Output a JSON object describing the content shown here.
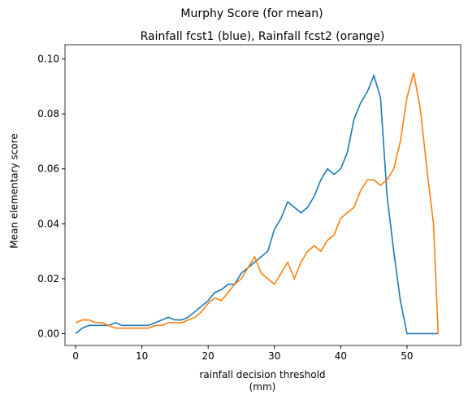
{
  "chart_data": {
    "type": "line",
    "suptitle": "Murphy Score (for mean)",
    "title": "Rainfall fcst1 (blue), Rainfall fcst2 (orange)",
    "x_label": "rainfall decision threshold\n(mm)",
    "y_label": "Mean elementary score",
    "x": [
      0,
      1,
      2,
      3,
      4,
      5,
      6,
      7,
      8,
      9,
      10,
      11,
      12,
      13,
      14,
      15,
      16,
      17,
      18,
      19,
      20,
      21,
      22,
      23,
      24,
      25,
      26,
      27,
      28,
      29,
      30,
      31,
      32,
      33,
      34,
      35,
      36,
      37,
      38,
      39,
      40,
      41,
      42,
      43,
      44,
      45,
      46,
      47,
      48,
      49,
      50,
      51,
      52,
      53,
      54,
      54.7
    ],
    "series": [
      {
        "color": "#1f77b4",
        "values": [
          0.0,
          0.002,
          0.003,
          0.003,
          0.003,
          0.003,
          0.004,
          0.003,
          0.003,
          0.003,
          0.003,
          0.003,
          0.004,
          0.005,
          0.006,
          0.005,
          0.005,
          0.006,
          0.008,
          0.01,
          0.012,
          0.015,
          0.016,
          0.018,
          0.018,
          0.022,
          0.024,
          0.026,
          0.028,
          0.03,
          0.038,
          0.042,
          0.048,
          0.046,
          0.044,
          0.046,
          0.05,
          0.056,
          0.06,
          0.058,
          0.06,
          0.066,
          0.078,
          0.084,
          0.088,
          0.094,
          0.086,
          0.05,
          0.03,
          0.012,
          0.0,
          0.0,
          0.0,
          0.0,
          0.0,
          0.0
        ]
      },
      {
        "color": "#ff7f0e",
        "values": [
          0.004,
          0.005,
          0.005,
          0.004,
          0.004,
          0.003,
          0.002,
          0.002,
          0.002,
          0.002,
          0.002,
          0.002,
          0.003,
          0.003,
          0.004,
          0.004,
          0.004,
          0.005,
          0.006,
          0.008,
          0.011,
          0.013,
          0.012,
          0.015,
          0.018,
          0.02,
          0.024,
          0.028,
          0.022,
          0.02,
          0.018,
          0.022,
          0.026,
          0.02,
          0.026,
          0.03,
          0.032,
          0.03,
          0.034,
          0.036,
          0.042,
          0.044,
          0.046,
          0.052,
          0.056,
          0.056,
          0.054,
          0.056,
          0.06,
          0.07,
          0.086,
          0.095,
          0.082,
          0.06,
          0.04,
          0.0
        ]
      }
    ],
    "xlim": [
      -1.6,
      58.1
    ],
    "ylim": [
      -0.0043,
      0.1052
    ],
    "xticks": [
      0,
      10,
      20,
      30,
      40,
      50
    ],
    "yticks": [
      {
        "value": 0,
        "label": "0.00"
      },
      {
        "value": 0.02,
        "label": "0.02"
      },
      {
        "value": 0.04,
        "label": "0.04"
      },
      {
        "value": 0.06,
        "label": "0.06"
      },
      {
        "value": 0.08,
        "label": "0.08"
      },
      {
        "value": 0.1,
        "label": "0.10"
      }
    ]
  }
}
